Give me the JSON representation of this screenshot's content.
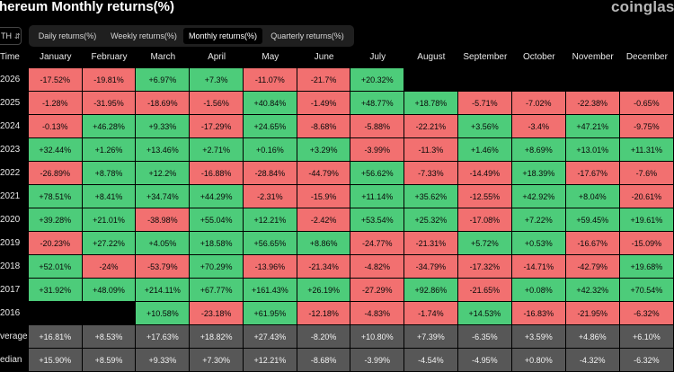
{
  "header": {
    "title": "thereum Monthly returns(%)",
    "logo": "coinglass"
  },
  "coin_select": {
    "value": "TH"
  },
  "tabs": [
    {
      "label": "Daily returns(%)",
      "active": false
    },
    {
      "label": "Weekly returns(%)",
      "active": false
    },
    {
      "label": "Monthly returns(%)",
      "active": true
    },
    {
      "label": "Quarterly returns(%)",
      "active": false
    }
  ],
  "colors": {
    "positive": "#4dcc7a",
    "negative": "#f27070",
    "summary": "#575757",
    "background": "#000000"
  },
  "table": {
    "time_header": "Time",
    "columns": [
      "January",
      "February",
      "March",
      "April",
      "May",
      "June",
      "July",
      "August",
      "September",
      "October",
      "November",
      "December"
    ],
    "rows": [
      {
        "label": "2026",
        "values": [
          "-17.52%",
          "-19.81%",
          "+6.97%",
          "+7.3%",
          "-11.07%",
          "-21.7%",
          "+20.32%",
          "",
          "",
          "",
          "",
          ""
        ]
      },
      {
        "label": "2025",
        "values": [
          "-1.28%",
          "-31.95%",
          "-18.69%",
          "-1.56%",
          "+40.84%",
          "-1.49%",
          "+48.77%",
          "+18.78%",
          "-5.71%",
          "-7.02%",
          "-22.38%",
          "-0.65%"
        ]
      },
      {
        "label": "2024",
        "values": [
          "-0.13%",
          "+46.28%",
          "+9.33%",
          "-17.29%",
          "+24.65%",
          "-8.68%",
          "-5.88%",
          "-22.21%",
          "+3.56%",
          "-3.4%",
          "+47.21%",
          "-9.75%"
        ]
      },
      {
        "label": "2023",
        "values": [
          "+32.44%",
          "+1.26%",
          "+13.46%",
          "+2.71%",
          "+0.16%",
          "+3.29%",
          "-3.99%",
          "-11.3%",
          "+1.46%",
          "+8.69%",
          "+13.01%",
          "+11.31%"
        ]
      },
      {
        "label": "2022",
        "values": [
          "-26.89%",
          "+8.78%",
          "+12.2%",
          "-16.88%",
          "-28.84%",
          "-44.79%",
          "+56.62%",
          "-7.33%",
          "-14.49%",
          "+18.39%",
          "-17.67%",
          "-7.6%"
        ]
      },
      {
        "label": "2021",
        "values": [
          "+78.51%",
          "+8.41%",
          "+34.74%",
          "+44.29%",
          "-2.31%",
          "-15.9%",
          "+11.14%",
          "+35.62%",
          "-12.55%",
          "+42.92%",
          "+8.04%",
          "-20.61%"
        ]
      },
      {
        "label": "2020",
        "values": [
          "+39.28%",
          "+21.01%",
          "-38.98%",
          "+55.04%",
          "+12.21%",
          "-2.42%",
          "+53.54%",
          "+25.32%",
          "-17.08%",
          "+7.22%",
          "+59.45%",
          "+19.61%"
        ]
      },
      {
        "label": "2019",
        "values": [
          "-20.23%",
          "+27.22%",
          "+4.05%",
          "+18.58%",
          "+56.65%",
          "+8.86%",
          "-24.77%",
          "-21.31%",
          "+5.72%",
          "+0.53%",
          "-16.67%",
          "-15.09%"
        ]
      },
      {
        "label": "2018",
        "values": [
          "+52.01%",
          "-24%",
          "-53.79%",
          "+70.29%",
          "-13.96%",
          "-21.34%",
          "-4.82%",
          "-34.79%",
          "-17.32%",
          "-14.71%",
          "-42.79%",
          "+19.68%"
        ]
      },
      {
        "label": "2017",
        "values": [
          "+31.92%",
          "+48.09%",
          "+214.11%",
          "+67.77%",
          "+161.43%",
          "+26.19%",
          "-27.29%",
          "+92.86%",
          "-21.65%",
          "+0.08%",
          "+42.32%",
          "+70.54%"
        ]
      },
      {
        "label": "2016",
        "values": [
          "",
          "",
          "+10.58%",
          "-23.18%",
          "+61.95%",
          "-12.18%",
          "-4.83%",
          "-1.74%",
          "+14.53%",
          "-16.83%",
          "-21.95%",
          "-6.32%"
        ]
      }
    ],
    "summary": [
      {
        "label": "verage",
        "values": [
          "+16.81%",
          "+8.53%",
          "+17.63%",
          "+18.82%",
          "+27.43%",
          "-8.20%",
          "+10.80%",
          "+7.39%",
          "-6.35%",
          "+3.59%",
          "+4.86%",
          "+6.10%"
        ]
      },
      {
        "label": "edian",
        "values": [
          "+15.90%",
          "+8.59%",
          "+9.33%",
          "+7.30%",
          "+12.21%",
          "-8.68%",
          "-3.99%",
          "-4.54%",
          "-4.95%",
          "+0.80%",
          "-4.32%",
          "-6.32%"
        ]
      }
    ]
  }
}
